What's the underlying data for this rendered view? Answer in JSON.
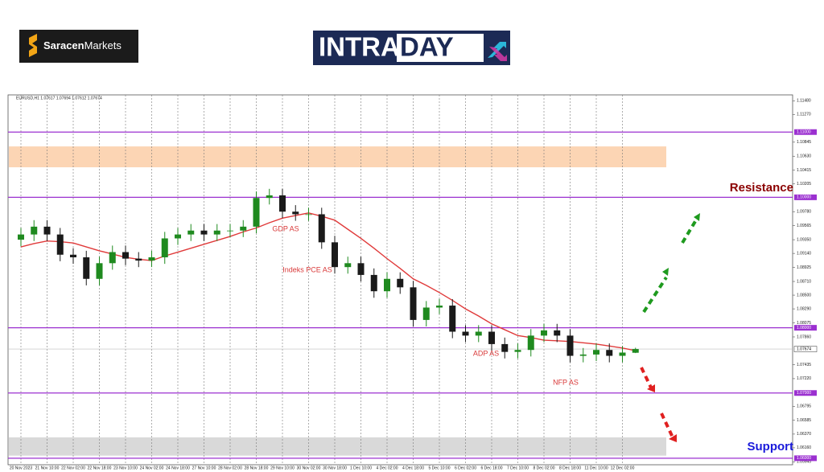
{
  "brand": {
    "name": "Saracen",
    "suffix": "Markets"
  },
  "banner": {
    "part1": "INTRA",
    "part2": "DAY"
  },
  "chart_data": {
    "type": "candlestick",
    "symbol_header": "EURUSD,H1  1.07617 1.07694 1.07612 1.07674",
    "categories": [
      "20 Nov 2023",
      null,
      "21 Nov 10:00",
      null,
      "22 Nov 02:00",
      null,
      "22 Nov 18:00",
      null,
      "23 Nov 10:00",
      null,
      "24 Nov 02:00",
      null,
      "24 Nov 18:00",
      null,
      "27 Nov 10:00",
      null,
      "28 Nov 02:00",
      null,
      "28 Nov 18:00",
      null,
      "29 Nov 10:00",
      null,
      "30 Nov 02:00",
      null,
      "30 Nov 18:00",
      null,
      "1 Dec 10:00",
      null,
      "4 Dec 02:00",
      null,
      "4 Dec 18:00",
      null,
      "5 Dec 10:00",
      null,
      "6 Dec 02:00",
      null,
      "6 Dec 18:00",
      null,
      "7 Dec 10:00",
      null,
      "8 Dec 02:00",
      null,
      "8 Dec 18:00",
      null,
      "11 Dec 10:00",
      null,
      "12 Dec 02:00",
      null
    ],
    "open": [
      1.0935,
      1.0943,
      1.0955,
      1.0943,
      1.0912,
      1.0908,
      1.0875,
      1.0899,
      1.0916,
      1.0906,
      1.0903,
      1.0908,
      1.0937,
      1.0943,
      1.0949,
      1.0943,
      1.0949,
      1.0949,
      1.0955,
      1.0999,
      1.1003,
      1.0978,
      1.0974,
      1.0974,
      1.0931,
      1.0893,
      1.0899,
      1.0881,
      1.0856,
      1.0875,
      1.0862,
      1.0812,
      1.0831,
      1.0834,
      1.0794,
      1.0788,
      1.0794,
      1.0775,
      1.0763,
      1.0766,
      1.0788,
      1.0796,
      1.0788,
      1.0757,
      1.0759,
      1.0766,
      1.0757,
      1.07617
    ],
    "high": [
      1.0953,
      1.0965,
      1.0965,
      1.0953,
      1.0922,
      1.0918,
      1.0909,
      1.0926,
      1.0926,
      1.0916,
      1.0918,
      1.0947,
      1.0953,
      1.0959,
      1.0959,
      1.0959,
      1.0959,
      1.0965,
      1.1009,
      1.1013,
      1.1013,
      1.0988,
      1.0984,
      1.0984,
      1.0941,
      1.0909,
      1.0909,
      1.0891,
      1.0885,
      1.0885,
      1.0872,
      1.0841,
      1.0844,
      1.0844,
      1.0804,
      1.0804,
      1.0804,
      1.0785,
      1.0776,
      1.0798,
      1.0806,
      1.0806,
      1.0798,
      1.0769,
      1.0776,
      1.0776,
      1.0772,
      1.07694
    ],
    "low": [
      1.0925,
      1.0933,
      1.0933,
      1.0902,
      1.0898,
      1.0865,
      1.0865,
      1.0889,
      1.0896,
      1.0893,
      1.0893,
      1.0898,
      1.0927,
      1.0933,
      1.0933,
      1.0933,
      1.0939,
      1.0939,
      1.0945,
      1.0989,
      1.0968,
      1.0964,
      1.0964,
      1.0921,
      1.0883,
      1.0883,
      1.0871,
      1.0846,
      1.0846,
      1.0852,
      1.0802,
      1.0802,
      1.0821,
      1.0784,
      1.0778,
      1.0778,
      1.0765,
      1.0753,
      1.0753,
      1.0756,
      1.0778,
      1.0778,
      1.0747,
      1.0747,
      1.0749,
      1.0747,
      1.0747,
      1.07612
    ],
    "close": [
      1.0943,
      1.0955,
      1.0943,
      1.0912,
      1.0908,
      1.0875,
      1.0899,
      1.0916,
      1.0906,
      1.0903,
      1.0908,
      1.0937,
      1.0943,
      1.0949,
      1.0943,
      1.0949,
      1.0949,
      1.0955,
      1.0999,
      1.1003,
      1.0978,
      1.0974,
      1.0974,
      1.0931,
      1.0893,
      1.0899,
      1.0881,
      1.0856,
      1.0875,
      1.0862,
      1.0812,
      1.0831,
      1.0834,
      1.0794,
      1.0788,
      1.0794,
      1.0775,
      1.0763,
      1.0766,
      1.0788,
      1.0796,
      1.0788,
      1.0757,
      1.0759,
      1.0766,
      1.0757,
      1.0762,
      1.07674
    ],
    "up_color": "#1f8a1f",
    "down_color": "#1a1a1a",
    "moving_average": {
      "color": "#e03a3a",
      "values": [
        1.0924,
        1.0929,
        1.0933,
        1.0932,
        1.093,
        1.0924,
        1.0918,
        1.0913,
        1.0908,
        1.0905,
        1.0903,
        1.091,
        1.0916,
        1.0922,
        1.0928,
        1.0934,
        1.094,
        1.0947,
        1.0953,
        1.0961,
        1.0968,
        1.0972,
        1.0976,
        1.0971,
        1.0965,
        1.0951,
        1.0937,
        1.0922,
        1.0906,
        1.0891,
        1.0875,
        1.0865,
        1.0854,
        1.0842,
        1.0829,
        1.0818,
        1.0806,
        1.0797,
        1.0788,
        1.0785,
        1.0781,
        1.078,
        1.0779,
        1.0777,
        1.0775,
        1.0772,
        1.0769,
        1.0765
      ]
    },
    "ylim": [
      1.059,
      1.1157
    ],
    "yticks": [
      {
        "value": 1.1148,
        "label": "1.11480"
      },
      {
        "value": 1.1127,
        "label": "1.11270"
      },
      {
        "value": 1.10845,
        "label": "1.10845"
      },
      {
        "value": 1.1063,
        "label": "1.10630"
      },
      {
        "value": 1.10415,
        "label": "1.10415"
      },
      {
        "value": 1.10205,
        "label": "1.10205"
      },
      {
        "value": 1.0978,
        "label": "1.09780"
      },
      {
        "value": 1.09565,
        "label": "1.09565"
      },
      {
        "value": 1.0935,
        "label": "1.09350"
      },
      {
        "value": 1.0914,
        "label": "1.09140"
      },
      {
        "value": 1.08925,
        "label": "1.08925"
      },
      {
        "value": 1.0871,
        "label": "1.08710"
      },
      {
        "value": 1.085,
        "label": "1.08500"
      },
      {
        "value": 1.0829,
        "label": "1.08290"
      },
      {
        "value": 1.08075,
        "label": "1.08075"
      },
      {
        "value": 1.0786,
        "label": "1.07860"
      },
      {
        "value": 1.07435,
        "label": "1.07435"
      },
      {
        "value": 1.0722,
        "label": "1.07220"
      },
      {
        "value": 1.06795,
        "label": "1.06795"
      },
      {
        "value": 1.06585,
        "label": "1.06585"
      },
      {
        "value": 1.0637,
        "label": "1.06370"
      },
      {
        "value": 1.0616,
        "label": "1.06160"
      },
      {
        "value": 1.05945,
        "label": "1.05945"
      }
    ],
    "levels": [
      {
        "value": 1.11,
        "label": "1.11000"
      },
      {
        "value": 1.1,
        "label": "1.10000"
      },
      {
        "value": 1.08,
        "label": "1.08000"
      },
      {
        "value": 1.07,
        "label": "1.07000"
      },
      {
        "value": 1.06,
        "label": "1.06000"
      }
    ],
    "level_color": "#9b30d0",
    "current_price": {
      "value": 1.07674,
      "label": "1.07674"
    },
    "zones": [
      {
        "from": 1.1046,
        "to": 1.1078,
        "color": "#fcd5b4"
      },
      {
        "from": 1.0604,
        "to": 1.0632,
        "color": "#d9d9d9"
      }
    ],
    "grid_x": true,
    "annotations": [
      "GDP AS",
      "Indeks PCE AS",
      "ADP AS",
      "NFP AS"
    ],
    "resistance_label": "Resistance",
    "support_label": "Support"
  }
}
